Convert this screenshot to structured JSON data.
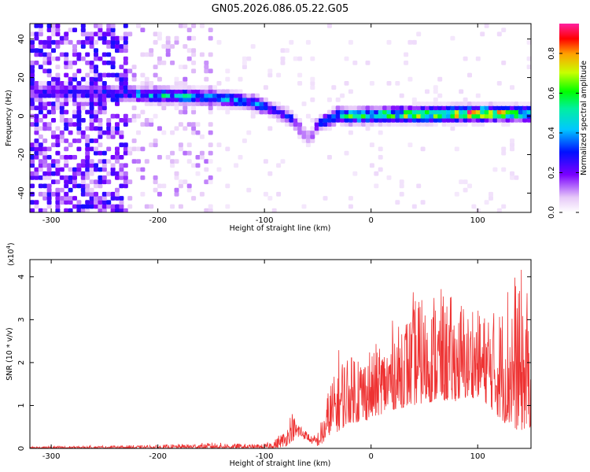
{
  "title": "GN05.2026.086.05.22.G05",
  "chart_data": [
    {
      "type": "heatmap",
      "name": "spectrogram",
      "xlabel": "Height of straight line (km)",
      "ylabel": "Frequency (Hz)",
      "xlim": [
        -320,
        150
      ],
      "ylim": [
        -50,
        48
      ],
      "xticks": [
        -300,
        -200,
        -100,
        0,
        100
      ],
      "yticks": [
        -40,
        -20,
        0,
        20,
        40
      ],
      "colorbar": {
        "label": "Normalized spectral amplitude",
        "range": [
          0,
          0.95
        ],
        "ticks": [
          0.0,
          0.2,
          0.4,
          0.6,
          0.8
        ]
      },
      "ridge": {
        "description": "dominant frequency band vs height",
        "x": [
          -290,
          -240,
          -200,
          -150,
          -110,
          -90,
          -75,
          -65,
          -57,
          -50,
          -40,
          -30,
          -20,
          0,
          50,
          100,
          150
        ],
        "freq_hz": [
          13,
          12,
          11,
          10,
          7,
          3,
          -1,
          -8,
          -12,
          -4,
          -2,
          1,
          0,
          0.5,
          1,
          1.5,
          1.5
        ],
        "peak_amplitude": [
          0.25,
          0.3,
          0.5,
          0.45,
          0.4,
          0.3,
          0.3,
          0.2,
          0.15,
          0.3,
          0.35,
          0.5,
          0.6,
          0.6,
          0.75,
          0.9,
          0.55
        ]
      }
    },
    {
      "type": "line",
      "name": "snr",
      "xlabel": "Height of straight line (km)",
      "ylabel": "SNR (10 * v/v)",
      "multiplier": "(x10",
      "multiplier_exp": "4",
      "multiplier_close": ")",
      "xlim": [
        -320,
        150
      ],
      "ylim": [
        0,
        4.4
      ],
      "xticks": [
        -300,
        -200,
        -100,
        0,
        100
      ],
      "yticks": [
        0,
        1,
        2,
        3,
        4
      ],
      "color": "#ee3333",
      "envelope": {
        "x": [
          -320,
          -200,
          -150,
          -110,
          -100,
          -90,
          -80,
          -75,
          -70,
          -65,
          -60,
          -55,
          -50,
          -45,
          -40,
          -30,
          -20,
          -10,
          0,
          10,
          20,
          40,
          60,
          80,
          100,
          110,
          120,
          130,
          140,
          150
        ],
        "min": [
          0,
          0,
          0,
          0,
          0,
          0,
          0.05,
          0.15,
          0.25,
          0.25,
          0.2,
          0.1,
          0.05,
          0.1,
          0.3,
          0.4,
          0.6,
          0.6,
          0.7,
          0.8,
          0.9,
          1.0,
          1.1,
          1.1,
          1.2,
          1.0,
          0.7,
          0.5,
          0.4,
          0.5
        ],
        "max": [
          0.05,
          0.08,
          0.14,
          0.1,
          0.12,
          0.25,
          0.5,
          0.9,
          0.7,
          0.6,
          0.4,
          0.3,
          0.4,
          0.8,
          1.4,
          2.4,
          2.4,
          2.5,
          2.4,
          2.6,
          3.0,
          3.7,
          3.8,
          3.5,
          3.6,
          3.5,
          3.8,
          4.1,
          4.3,
          3.5
        ]
      }
    }
  ]
}
